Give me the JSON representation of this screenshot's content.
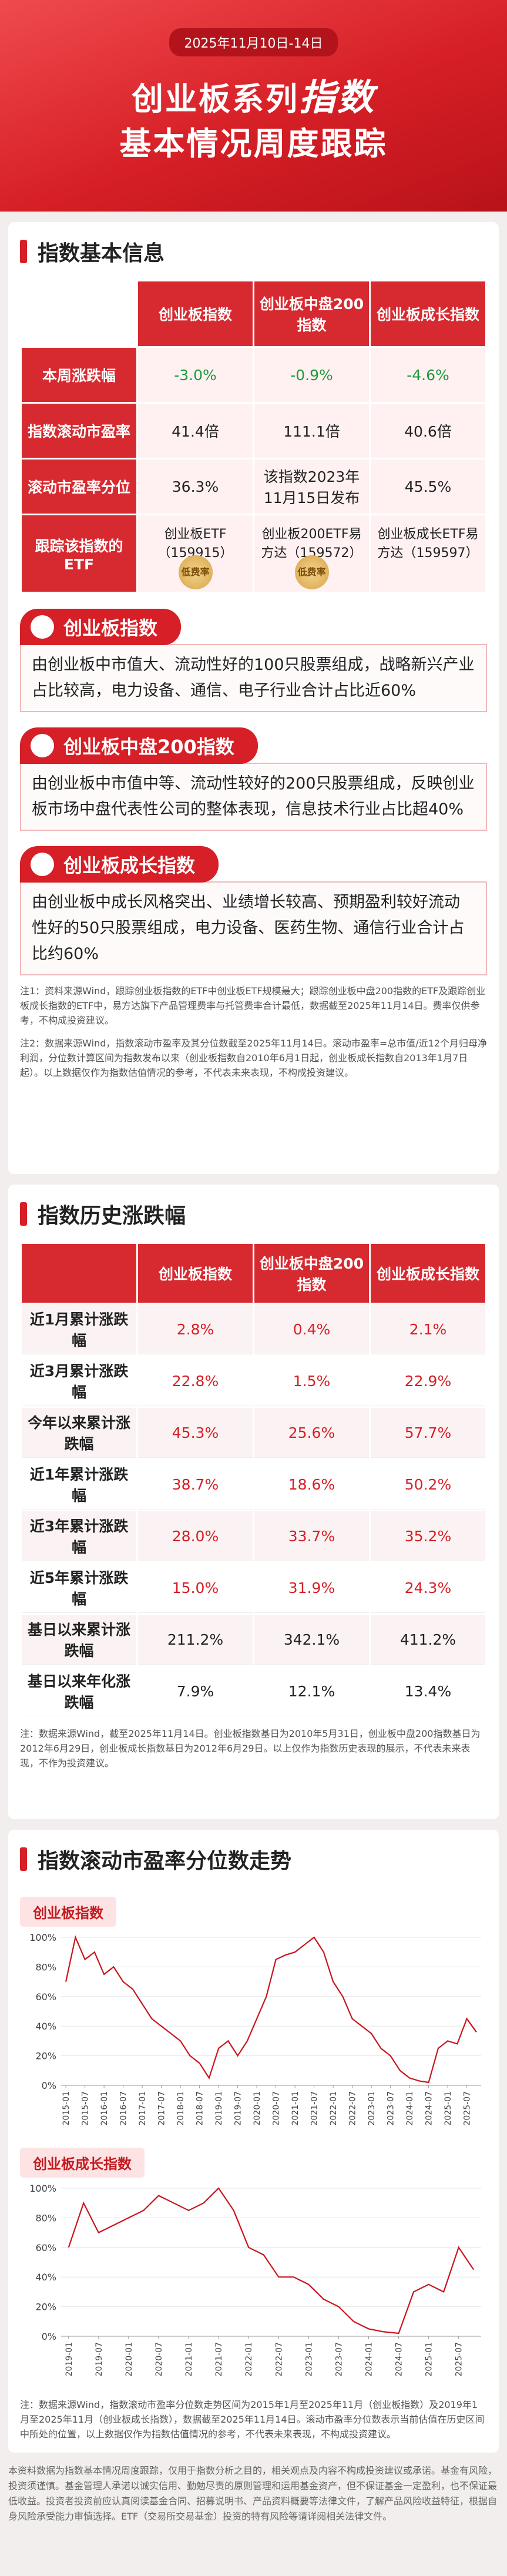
{
  "header": {
    "date": "2025年11月10日-14日",
    "title_line1_a": "创业板系列",
    "title_line1_b": "指数",
    "title_line2": "基本情况周度跟踪"
  },
  "basic_info": {
    "heading": "指数基本信息",
    "columns": [
      "创业板指数",
      "创业板中盘200指数",
      "创业板成长指数"
    ],
    "rows": [
      {
        "label": "本周涨跌幅",
        "cells": [
          "-3.0%",
          "-0.9%",
          "-4.6%"
        ]
      },
      {
        "label": "指数滚动市盈率",
        "cells": [
          "41.4倍",
          "111.1倍",
          "40.6倍"
        ]
      },
      {
        "label": "滚动市盈率分位",
        "cells": [
          "36.3%",
          "该指数2023年11月15日发布",
          "45.5%"
        ]
      },
      {
        "label": "跟踪该指数的ETF",
        "cells": [
          "创业板ETF（159915）",
          "创业板200ETF易方达（159572）",
          "创业板成长ETF易方达（159597）"
        ]
      }
    ],
    "badge": "低费率"
  },
  "descriptions": [
    {
      "title": "创业板指数",
      "text": "由创业板中市值大、流动性好的100只股票组成，战略新兴产业占比较高，电力设备、通信、电子行业合计占比近60%"
    },
    {
      "title": "创业板中盘200指数",
      "text": "由创业板中市值中等、流动性较好的200只股票组成，反映创业板市场中盘代表性公司的整体表现，信息技术行业占比超40%"
    },
    {
      "title": "创业板成长指数",
      "text": "由创业板中成长风格突出、业绩增长较高、预期盈利较好流动性好的50只股票组成，电力设备、医药生物、通信行业合计占比约60%"
    }
  ],
  "notes1": [
    "注1：资料来源Wind，跟踪创业板指数的ETF中创业板ETF规模最大；跟踪创业板中盘200指数的ETF及跟踪创业板成长指数的ETF中，易方达旗下产品管理费率与托管费率合计最低，数据截至2025年11月14日。费率仅供参考，不构成投资建议。",
    "注2：数据来源Wind，指数滚动市盈率及其分位数截至2025年11月14日。滚动市盈率=总市值/近12个月归母净利润，分位数计算区间为指数发布以来（创业板指数自2010年6月1日起，创业板成长指数自2013年1月7日起）。以上数据仅作为指数估值情况的参考，不代表未来表现，不构成投资建议。"
  ],
  "history": {
    "heading": "指数历史涨跌幅",
    "columns": [
      "创业板指数",
      "创业板中盘200指数",
      "创业板成长指数"
    ],
    "rows": [
      {
        "label": "近1月累计涨跌幅",
        "cells": [
          "2.8%",
          "0.4%",
          "2.1%"
        ]
      },
      {
        "label": "近3月累计涨跌幅",
        "cells": [
          "22.8%",
          "1.5%",
          "22.9%"
        ]
      },
      {
        "label": "今年以来累计涨跌幅",
        "cells": [
          "45.3%",
          "25.6%",
          "57.7%"
        ]
      },
      {
        "label": "近1年累计涨跌幅",
        "cells": [
          "38.7%",
          "18.6%",
          "50.2%"
        ]
      },
      {
        "label": "近3年累计涨跌幅",
        "cells": [
          "28.0%",
          "33.7%",
          "35.2%"
        ]
      },
      {
        "label": "近5年累计涨跌幅",
        "cells": [
          "15.0%",
          "31.9%",
          "24.3%"
        ]
      },
      {
        "label": "基日以来累计涨跌幅",
        "cells": [
          "211.2%",
          "342.1%",
          "411.2%"
        ]
      },
      {
        "label": "基日以来年化涨跌幅",
        "cells": [
          "7.9%",
          "12.1%",
          "13.4%"
        ]
      }
    ],
    "note": "注：数据来源Wind，截至2025年11月14日。创业板指数基日为2010年5月31日，创业板中盘200指数基日为2012年6月29日，创业板成长指数基日为2012年6月29日。以上仅作为指数历史表现的展示，不代表未来表现，不作为投资建议。"
  },
  "pe_heading": "指数滚动市盈率分位数走势",
  "chart_data": [
    {
      "type": "line",
      "title": "创业板指数",
      "color": "#c9151e",
      "grid": true,
      "x": [
        "2015-01",
        null,
        "2015-07",
        null,
        "2016-01",
        null,
        "2016-07",
        null,
        "2017-01",
        null,
        "2017-07",
        null,
        "2018-01",
        null,
        "2018-07",
        null,
        "2019-01",
        null,
        "2019-07",
        null,
        "2020-01",
        null,
        "2020-07",
        null,
        "2021-01",
        null,
        "2021-07",
        null,
        "2022-01",
        null,
        "2022-07",
        null,
        "2023-01",
        null,
        "2023-07",
        null,
        "2024-01",
        null,
        "2024-07",
        null,
        "2025-01",
        null,
        "2025-07",
        null
      ],
      "values": [
        70,
        100,
        85,
        90,
        75,
        80,
        70,
        65,
        55,
        45,
        40,
        35,
        30,
        20,
        15,
        5,
        25,
        30,
        20,
        30,
        45,
        60,
        85,
        88,
        90,
        95,
        100,
        90,
        70,
        60,
        45,
        40,
        35,
        25,
        20,
        10,
        5,
        3,
        2,
        25,
        30,
        28,
        45,
        36
      ],
      "ylim": [
        0,
        100
      ],
      "yticks": [
        {
          "value": 0,
          "label": "0%"
        },
        {
          "value": 20,
          "label": "20%"
        },
        {
          "value": 40,
          "label": "40%"
        },
        {
          "value": 60,
          "label": "60%"
        },
        {
          "value": 80,
          "label": "80%"
        },
        {
          "value": 100,
          "label": "100%"
        }
      ]
    },
    {
      "type": "line",
      "title": "创业板成长指数",
      "color": "#c9151e",
      "grid": true,
      "x": [
        "2019-01",
        null,
        "2019-07",
        null,
        "2020-01",
        null,
        "2020-07",
        null,
        "2021-01",
        null,
        "2021-07",
        null,
        "2022-01",
        null,
        "2022-07",
        null,
        "2023-01",
        null,
        "2023-07",
        null,
        "2024-01",
        null,
        "2024-07",
        null,
        "2025-01",
        null,
        "2025-07",
        null
      ],
      "values": [
        60,
        90,
        70,
        75,
        80,
        85,
        95,
        90,
        85,
        90,
        100,
        85,
        60,
        55,
        40,
        40,
        35,
        25,
        20,
        10,
        5,
        3,
        2,
        30,
        35,
        30,
        60,
        45
      ],
      "ylim": [
        0,
        100
      ],
      "yticks": [
        {
          "value": 0,
          "label": "0%"
        },
        {
          "value": 20,
          "label": "20%"
        },
        {
          "value": 40,
          "label": "40%"
        },
        {
          "value": 60,
          "label": "60%"
        },
        {
          "value": 80,
          "label": "80%"
        },
        {
          "value": 100,
          "label": "100%"
        }
      ]
    }
  ],
  "pe_note": "注：数据来源Wind，指数滚动市盈率分位数走势区间为2015年1月至2025年11月（创业板指数）及2019年1月至2025年11月（创业板成长指数），数据截至2025年11月14日。滚动市盈率分位数表示当前估值在历史区间中所处的位置，以上数据仅作为指数估值情况的参考，不代表未来表现，不构成投资建议。",
  "disclaimer": "本资料数据为指数基本情况周度跟踪，仅用于指数分析之目的，相关观点及内容不构成投资建议或承诺。基金有风险，投资须谨慎。基金管理人承诺以诚实信用、勤勉尽责的原则管理和运用基金资产，但不保证基金一定盈利，也不保证最低收益。投资者投资前应认真阅读基金合同、招募说明书、产品资料概要等法律文件，了解产品风险收益特征，根据自身风险承受能力审慎选择。ETF（交易所交易基金）投资的特有风险等请详阅相关法律文件。"
}
